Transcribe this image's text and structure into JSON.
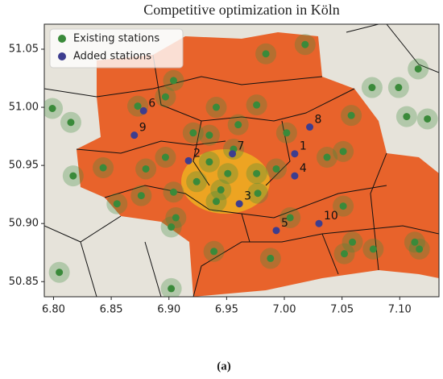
{
  "chart_data": {
    "type": "scatter",
    "title": "Competitive optimization in Köln",
    "caption": "(a)",
    "xlim": [
      6.792,
      7.134
    ],
    "ylim": [
      50.837,
      51.0715
    ],
    "xticks": [
      {
        "value": 6.8,
        "label": "6.80"
      },
      {
        "value": 6.85,
        "label": "6.85"
      },
      {
        "value": 6.9,
        "label": "6.90"
      },
      {
        "value": 6.95,
        "label": "6.95"
      },
      {
        "value": 7.0,
        "label": "7.00"
      },
      {
        "value": 7.05,
        "label": "7.05"
      },
      {
        "value": 7.1,
        "label": "7.10"
      }
    ],
    "yticks": [
      50.85,
      {
        "value": 50.9,
        "label": "50.90"
      },
      50.95,
      {
        "value": 51.0,
        "label": "51.00"
      },
      51.05
    ],
    "legend": "upper left",
    "series": [
      {
        "name": "Existing stations",
        "color": "#3a8a3a",
        "x": [
          6.984,
          7.018,
          7.116,
          7.099,
          6.799,
          6.815,
          6.904,
          6.941,
          6.976,
          6.897,
          6.873,
          6.921,
          6.96,
          7.002,
          7.051,
          7.058,
          7.076,
          7.106,
          7.124,
          6.817,
          6.843,
          6.876,
          6.855,
          6.906,
          6.904,
          6.935,
          6.897,
          6.88,
          6.941,
          6.951,
          6.976,
          6.993,
          6.977,
          6.956,
          6.935,
          6.924,
          6.945,
          7.051,
          7.059,
          7.052,
          7.077,
          7.113,
          7.117,
          6.988,
          6.939,
          6.902,
          6.805,
          6.902,
          7.037,
          7.005
        ],
        "y": [
          51.046,
          51.054,
          51.033,
          51.017,
          50.999,
          50.987,
          51.023,
          51.0,
          51.002,
          51.009,
          51.001,
          50.978,
          50.985,
          50.978,
          50.962,
          50.993,
          51.017,
          50.992,
          50.99,
          50.941,
          50.948,
          50.924,
          50.917,
          50.905,
          50.927,
          50.976,
          50.957,
          50.947,
          50.919,
          50.943,
          50.943,
          50.947,
          50.926,
          50.964,
          50.953,
          50.936,
          50.929,
          50.915,
          50.884,
          50.874,
          50.878,
          50.884,
          50.878,
          50.87,
          50.876,
          50.897,
          50.858,
          50.844,
          50.957,
          50.905
        ]
      },
      {
        "name": "Added stations",
        "color": "#3d3d8f",
        "x": [
          7.009,
          6.917,
          6.961,
          7.009,
          6.993,
          6.878,
          6.955,
          7.022,
          6.87,
          7.03
        ],
        "y": [
          50.96,
          50.954,
          50.917,
          50.941,
          50.894,
          50.997,
          50.96,
          50.983,
          50.976,
          50.9
        ],
        "point_labels": [
          "1",
          "2",
          "3",
          "4",
          "5",
          "6",
          "7",
          "8",
          "9",
          "10"
        ]
      }
    ]
  }
}
